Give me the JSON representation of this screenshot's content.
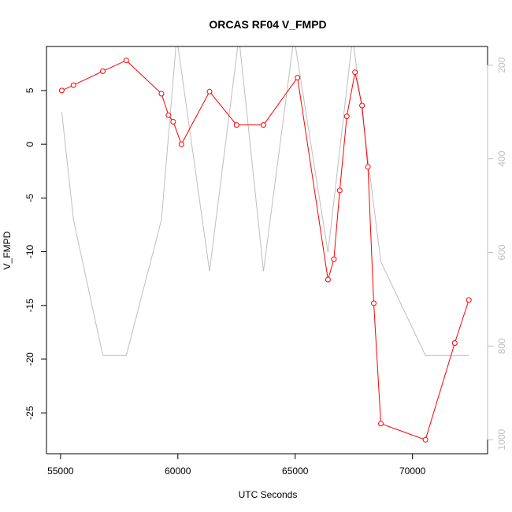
{
  "chart_data": {
    "type": "line",
    "title": "ORCAS RF04 V_FMPD",
    "xlabel": "UTC Seconds",
    "ylabel": "V_FMPD",
    "xlim": [
      54400,
      73200
    ],
    "ylim": [
      -28.8,
      9.1
    ],
    "x_ticks": [
      55000,
      60000,
      65000,
      70000
    ],
    "y_ticks": [
      -25,
      -20,
      -15,
      -10,
      -5,
      0,
      5
    ],
    "y2_lim": [
      1030,
      160
    ],
    "y2_ticks": [
      200,
      400,
      600,
      800,
      1000
    ],
    "series": [
      {
        "color": "#ff0000",
        "style": "line-with-open-circles",
        "axis": "left",
        "x": [
          55050,
          55550,
          56800,
          57800,
          59300,
          59600,
          59800,
          60150,
          61350,
          62500,
          63650,
          65100,
          66400,
          66650,
          66900,
          67200,
          67550,
          67850,
          68100,
          68350,
          68650,
          70550,
          71800,
          72400
        ],
        "y": [
          5.0,
          5.5,
          6.8,
          7.8,
          4.7,
          2.7,
          2.1,
          0.0,
          4.9,
          1.8,
          1.8,
          6.2,
          -12.6,
          -10.7,
          -4.3,
          2.6,
          6.7,
          3.6,
          -2.1,
          -14.8,
          -26.0,
          -27.5,
          -18.5,
          -14.5
        ]
      },
      {
        "color": "#bebebe",
        "style": "line",
        "axis": "right",
        "x": [
          55050,
          55550,
          56800,
          57800,
          59300,
          59950,
          61350,
          62600,
          63650,
          64950,
          66400,
          67450,
          68650,
          70550,
          72400
        ],
        "y": [
          300,
          530,
          820,
          820,
          530,
          140,
          640,
          140,
          640,
          140,
          600,
          140,
          620,
          820,
          820
        ]
      }
    ]
  }
}
